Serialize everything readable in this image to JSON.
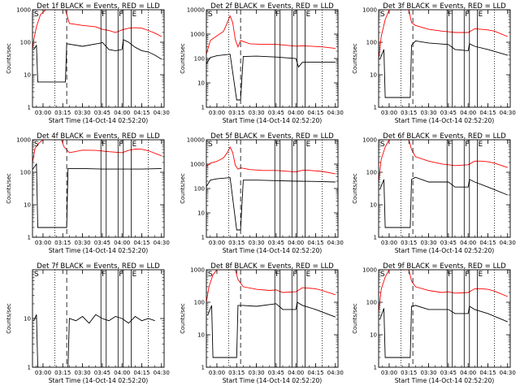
{
  "chart_data": [
    {
      "type": "line",
      "title": "Det 1f BLACK = Events, RED = LLD",
      "xlabel": "Start Time (14-Oct-14 02:52:20)",
      "ylabel": "Counts/sec",
      "x_ticks": [
        "03:00",
        "03:15",
        "03:30",
        "03:45",
        "04:00",
        "04:15",
        "04:30"
      ],
      "y_ticks": [
        "1",
        "10",
        "100",
        "1000"
      ],
      "yscale": "log",
      "ylim": [
        1,
        1000
      ],
      "markers": [
        "S",
        "F",
        "F",
        "E"
      ],
      "series": [
        {
          "color": "#ff0000",
          "times": [
            "02:52",
            "02:53",
            "02:55",
            "02:58",
            "03:02",
            "03:06",
            "03:10",
            "03:14",
            "03:17",
            "03:20",
            "03:30",
            "03:40",
            "03:45",
            "03:50",
            "03:55",
            "04:00",
            "04:05",
            "04:10",
            "04:15",
            "04:20",
            "04:25",
            "04:30"
          ],
          "values": [
            60,
            120,
            300,
            700,
            1000,
            1000,
            1000,
            1000,
            1000,
            380,
            330,
            300,
            250,
            230,
            200,
            240,
            270,
            280,
            270,
            230,
            190,
            150
          ]
        },
        {
          "color": "#000000",
          "times": [
            "02:53",
            "02:55",
            "02:56",
            "03:17",
            "03:18",
            "03:30",
            "03:44",
            "03:45",
            "03:50",
            "03:55",
            "04:00",
            "04:01",
            "04:05",
            "04:10",
            "04:15",
            "04:20",
            "04:25",
            "04:30"
          ],
          "values": [
            60,
            80,
            6,
            6,
            90,
            75,
            95,
            100,
            60,
            55,
            60,
            120,
            100,
            70,
            55,
            50,
            40,
            30
          ]
        }
      ]
    },
    {
      "type": "line",
      "title": "Det 2f BLACK = Events, RED = LLD",
      "xlabel": "Start Time (14-Oct-14 02:52:20)",
      "ylabel": "Counts/sec",
      "x_ticks": [
        "03:00",
        "03:15",
        "03:30",
        "03:45",
        "04:00",
        "04:15",
        "04:30"
      ],
      "y_ticks": [
        "1",
        "10",
        "100",
        "1000",
        "10000"
      ],
      "yscale": "log",
      "ylim": [
        1,
        10000
      ],
      "markers": [
        "S",
        "F",
        "F",
        "E"
      ],
      "series": [
        {
          "color": "#ff0000",
          "times": [
            "02:52",
            "02:55",
            "03:00",
            "03:05",
            "03:08",
            "03:10",
            "03:12",
            "03:14",
            "03:16",
            "03:18",
            "03:25",
            "03:35",
            "03:45",
            "04:00",
            "04:05",
            "04:10",
            "04:20",
            "04:30"
          ],
          "values": [
            150,
            550,
            850,
            1300,
            3000,
            5600,
            3000,
            600,
            300,
            550,
            400,
            380,
            380,
            320,
            330,
            320,
            300,
            260
          ]
        },
        {
          "color": "#000000",
          "times": [
            "02:52",
            "02:55",
            "03:00",
            "03:10",
            "03:15",
            "03:18",
            "03:20",
            "03:30",
            "03:45",
            "04:00",
            "04:02",
            "04:05",
            "04:15",
            "04:30"
          ],
          "values": [
            60,
            110,
            130,
            150,
            2,
            2,
            120,
            125,
            115,
            100,
            45,
            70,
            70,
            70
          ]
        }
      ]
    },
    {
      "type": "line",
      "title": "Det 3f BLACK = Events, RED = LLD",
      "xlabel": "Start Time (14-Oct-14 02:52:20)",
      "ylabel": "Counts/sec",
      "x_ticks": [
        "03:00",
        "03:15",
        "03:30",
        "03:45",
        "04:00",
        "04:15",
        "04:30"
      ],
      "y_ticks": [
        "1",
        "10",
        "100",
        "1000"
      ],
      "yscale": "log",
      "ylim": [
        1,
        1000
      ],
      "markers": [
        "S",
        "F",
        "F",
        "E"
      ],
      "series": [
        {
          "color": "#ff0000",
          "times": [
            "02:52",
            "02:54",
            "02:57",
            "03:00",
            "03:05",
            "03:10",
            "03:15",
            "03:17",
            "03:20",
            "03:30",
            "03:40",
            "03:45",
            "03:50",
            "04:00",
            "04:05",
            "04:10",
            "04:15",
            "04:20",
            "04:30"
          ],
          "values": [
            30,
            150,
            500,
            1000,
            1000,
            1000,
            1000,
            400,
            330,
            250,
            220,
            210,
            200,
            200,
            260,
            250,
            240,
            220,
            150
          ]
        },
        {
          "color": "#000000",
          "times": [
            "02:53",
            "02:56",
            "02:57",
            "03:16",
            "03:17",
            "03:20",
            "03:30",
            "03:45",
            "03:50",
            "04:00",
            "04:01",
            "04:05",
            "04:15",
            "04:30"
          ],
          "values": [
            30,
            60,
            2,
            2,
            80,
            110,
            95,
            85,
            60,
            55,
            90,
            75,
            60,
            40
          ]
        }
      ]
    },
    {
      "type": "line",
      "title": "Det 4f BLACK = Events, RED = LLD",
      "xlabel": "Start Time (14-Oct-14 02:52:20)",
      "ylabel": "Counts/sec",
      "x_ticks": [
        "03:00",
        "03:15",
        "03:30",
        "03:45",
        "04:00",
        "04:15",
        "04:30"
      ],
      "y_ticks": [
        "1",
        "10",
        "100",
        "1000"
      ],
      "yscale": "log",
      "ylim": [
        1,
        1000
      ],
      "markers": [
        "S",
        "F",
        "F",
        "E"
      ],
      "series": [
        {
          "color": "#ff0000",
          "times": [
            "02:52",
            "02:54",
            "02:57",
            "03:00",
            "03:05",
            "03:10",
            "03:14",
            "03:16",
            "03:20",
            "03:30",
            "03:40",
            "03:50",
            "04:00",
            "04:05",
            "04:10",
            "04:15",
            "04:20",
            "04:30"
          ],
          "values": [
            200,
            550,
            800,
            1000,
            1000,
            1000,
            1000,
            600,
            400,
            480,
            470,
            430,
            400,
            470,
            520,
            510,
            460,
            320
          ]
        },
        {
          "color": "#000000",
          "times": [
            "02:52",
            "02:55",
            "02:56",
            "03:18",
            "03:19",
            "03:30",
            "03:45",
            "04:00",
            "04:15",
            "04:30"
          ],
          "values": [
            120,
            180,
            2,
            2,
            130,
            130,
            125,
            125,
            125,
            130
          ]
        }
      ]
    },
    {
      "type": "line",
      "title": "Det 5f BLACK = Events, RED = LLD",
      "xlabel": "Start Time (14-Oct-14 02:52:20)",
      "ylabel": "Counts/sec",
      "x_ticks": [
        "03:00",
        "03:15",
        "03:30",
        "03:45",
        "04:00",
        "04:15",
        "04:30"
      ],
      "y_ticks": [
        "1",
        "10",
        "100",
        "1000",
        "10000"
      ],
      "yscale": "log",
      "ylim": [
        1,
        10000
      ],
      "markers": [
        "S",
        "F",
        "F",
        "E"
      ],
      "series": [
        {
          "color": "#ff0000",
          "times": [
            "02:52",
            "02:55",
            "03:00",
            "03:05",
            "03:08",
            "03:10",
            "03:12",
            "03:14",
            "03:16",
            "03:18",
            "03:25",
            "03:35",
            "03:45",
            "04:00",
            "04:05",
            "04:10",
            "04:20",
            "04:30"
          ],
          "values": [
            800,
            1100,
            1300,
            1800,
            3000,
            5000,
            3000,
            900,
            620,
            700,
            600,
            550,
            550,
            480,
            560,
            560,
            500,
            400
          ]
        },
        {
          "color": "#000000",
          "times": [
            "02:52",
            "02:55",
            "03:00",
            "03:10",
            "03:15",
            "03:18",
            "03:20",
            "03:30",
            "03:45",
            "04:00",
            "04:15",
            "04:30"
          ],
          "values": [
            120,
            220,
            250,
            280,
            2,
            2,
            220,
            220,
            210,
            200,
            195,
            185
          ]
        }
      ]
    },
    {
      "type": "line",
      "title": "Det 6f BLACK = Events, RED = LLD",
      "xlabel": "Start Time (14-Oct-14 02:52:20)",
      "ylabel": "Counts/sec",
      "x_ticks": [
        "03:00",
        "03:15",
        "03:30",
        "03:45",
        "04:00",
        "04:15",
        "04:30"
      ],
      "y_ticks": [
        "1",
        "10",
        "100",
        "1000"
      ],
      "yscale": "log",
      "ylim": [
        1,
        1000
      ],
      "markers": [
        "S",
        "F",
        "F",
        "E"
      ],
      "series": [
        {
          "color": "#ff0000",
          "times": [
            "02:52",
            "02:54",
            "02:57",
            "03:00",
            "03:05",
            "03:10",
            "03:15",
            "03:17",
            "03:20",
            "03:30",
            "03:40",
            "03:45",
            "03:50",
            "04:00",
            "04:05",
            "04:10",
            "04:15",
            "04:20",
            "04:30"
          ],
          "values": [
            50,
            250,
            600,
            1000,
            1000,
            1000,
            1000,
            500,
            300,
            220,
            180,
            170,
            160,
            170,
            220,
            220,
            210,
            190,
            140
          ]
        },
        {
          "color": "#000000",
          "times": [
            "02:53",
            "02:56",
            "02:57",
            "03:16",
            "03:17",
            "03:20",
            "03:30",
            "03:45",
            "03:50",
            "04:00",
            "04:01",
            "04:05",
            "04:15",
            "04:30"
          ],
          "values": [
            30,
            60,
            2,
            2,
            60,
            70,
            50,
            50,
            35,
            35,
            60,
            50,
            35,
            20
          ]
        }
      ]
    },
    {
      "type": "line",
      "title": "Det 7f BLACK = Events, RED = LLD",
      "xlabel": "Start Time (14-Oct-14 02:52:20)",
      "ylabel": "Counts/sec",
      "x_ticks": [
        "03:00",
        "03:15",
        "03:30",
        "03:45",
        "04:00",
        "04:15",
        "04:30"
      ],
      "y_ticks": [
        "1",
        "10"
      ],
      "yscale": "log",
      "ylim": [
        1,
        100
      ],
      "markers": [
        "S",
        "F",
        "F",
        "E"
      ],
      "series": [
        {
          "color": "#000000",
          "times": [
            "02:53",
            "02:55",
            "02:56",
            "03:19",
            "03:20",
            "03:25",
            "03:30",
            "03:35",
            "03:40",
            "03:45",
            "03:50",
            "03:55",
            "04:00",
            "04:05",
            "04:10",
            "04:15",
            "04:20",
            "04:25"
          ],
          "values": [
            9,
            12,
            1,
            1,
            10,
            9,
            11,
            8,
            12,
            10,
            9,
            11,
            10,
            8,
            11,
            9,
            10,
            9
          ]
        }
      ]
    },
    {
      "type": "line",
      "title": "Det 8f BLACK = Events, RED = LLD",
      "xlabel": "Start Time (14-Oct-14 02:52:20)",
      "ylabel": "Counts/sec",
      "x_ticks": [
        "03:00",
        "03:15",
        "03:30",
        "03:45",
        "04:00",
        "04:15",
        "04:30"
      ],
      "y_ticks": [
        "1",
        "10",
        "100",
        "1000"
      ],
      "yscale": "log",
      "ylim": [
        1,
        1000
      ],
      "markers": [
        "S",
        "F",
        "F",
        "E"
      ],
      "series": [
        {
          "color": "#ff0000",
          "times": [
            "02:52",
            "02:54",
            "02:57",
            "03:00",
            "03:05",
            "03:10",
            "03:14",
            "03:16",
            "03:20",
            "03:30",
            "03:40",
            "03:45",
            "03:50",
            "04:00",
            "04:05",
            "04:10",
            "04:15",
            "04:20",
            "04:30"
          ],
          "values": [
            100,
            300,
            700,
            1000,
            1000,
            1000,
            1000,
            500,
            300,
            250,
            230,
            240,
            200,
            210,
            280,
            270,
            260,
            230,
            170
          ]
        },
        {
          "color": "#000000",
          "times": [
            "02:53",
            "02:56",
            "02:57",
            "03:15",
            "03:16",
            "03:20",
            "03:30",
            "03:45",
            "03:50",
            "04:00",
            "04:01",
            "04:05",
            "04:15",
            "04:30"
          ],
          "values": [
            40,
            80,
            2,
            2,
            80,
            80,
            75,
            90,
            60,
            60,
            100,
            80,
            60,
            35
          ]
        }
      ]
    },
    {
      "type": "line",
      "title": "Det 9f BLACK = Events, RED = LLD",
      "xlabel": "Start Time (14-Oct-14 02:52:20)",
      "ylabel": "Counts/sec",
      "x_ticks": [
        "03:00",
        "03:15",
        "03:30",
        "03:45",
        "04:00",
        "04:15",
        "04:30"
      ],
      "y_ticks": [
        "1",
        "10",
        "100",
        "1000"
      ],
      "yscale": "log",
      "ylim": [
        1,
        1000
      ],
      "markers": [
        "S",
        "F",
        "F",
        "E"
      ],
      "series": [
        {
          "color": "#ff0000",
          "times": [
            "02:52",
            "02:54",
            "02:57",
            "03:00",
            "03:05",
            "03:10",
            "03:15",
            "03:17",
            "03:20",
            "03:30",
            "03:40",
            "03:45",
            "03:50",
            "04:00",
            "04:05",
            "04:10",
            "04:15",
            "04:20",
            "04:30"
          ],
          "values": [
            50,
            250,
            600,
            1000,
            1000,
            1000,
            1000,
            450,
            300,
            230,
            200,
            210,
            190,
            200,
            260,
            260,
            250,
            220,
            150
          ]
        },
        {
          "color": "#000000",
          "times": [
            "02:53",
            "02:56",
            "02:57",
            "03:16",
            "03:17",
            "03:20",
            "03:30",
            "03:45",
            "03:50",
            "04:00",
            "04:01",
            "04:05",
            "04:15",
            "04:30"
          ],
          "values": [
            30,
            65,
            2,
            2,
            75,
            80,
            60,
            60,
            45,
            45,
            75,
            60,
            45,
            25
          ]
        }
      ]
    }
  ]
}
